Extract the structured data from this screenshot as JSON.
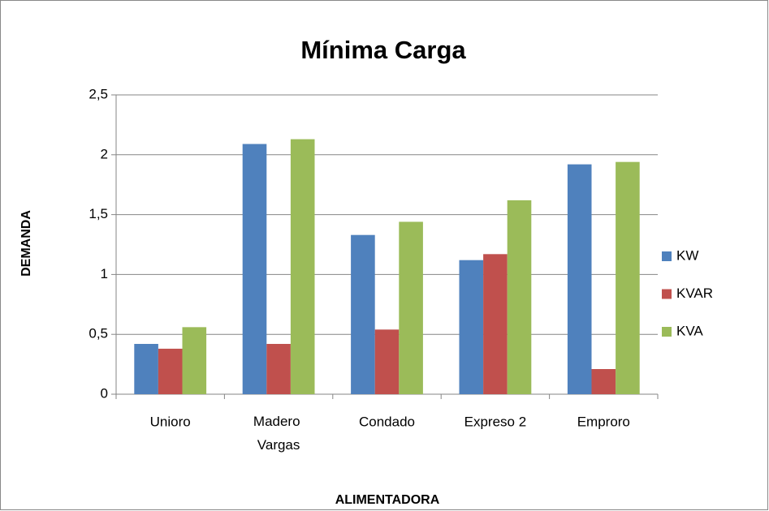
{
  "chart_data": {
    "type": "bar",
    "title": "Mínima Carga",
    "x_label": "ALIMENTADORA",
    "y_label": "DEMANDA",
    "categories": [
      "Unioro",
      "Madero Vargas",
      "Condado",
      "Expreso 2",
      "Emproro"
    ],
    "series": [
      {
        "name": "KW",
        "color": "#4f81bd",
        "values": [
          0.42,
          2.09,
          1.33,
          1.12,
          1.92
        ]
      },
      {
        "name": "KVAR",
        "color": "#c0504d",
        "values": [
          0.38,
          0.42,
          0.54,
          1.17,
          0.21
        ]
      },
      {
        "name": "KVA",
        "color": "#9bbb59",
        "values": [
          0.56,
          2.13,
          1.44,
          1.62,
          1.94
        ]
      }
    ],
    "ylim": [
      0,
      2.5
    ],
    "yticks": [
      0,
      {
        "value": 0.5,
        "label": "0,5"
      },
      1,
      {
        "value": 1.5,
        "label": "1,5"
      },
      2,
      {
        "value": 2.5,
        "label": "2,5"
      }
    ],
    "grid": true,
    "legend": "right"
  }
}
